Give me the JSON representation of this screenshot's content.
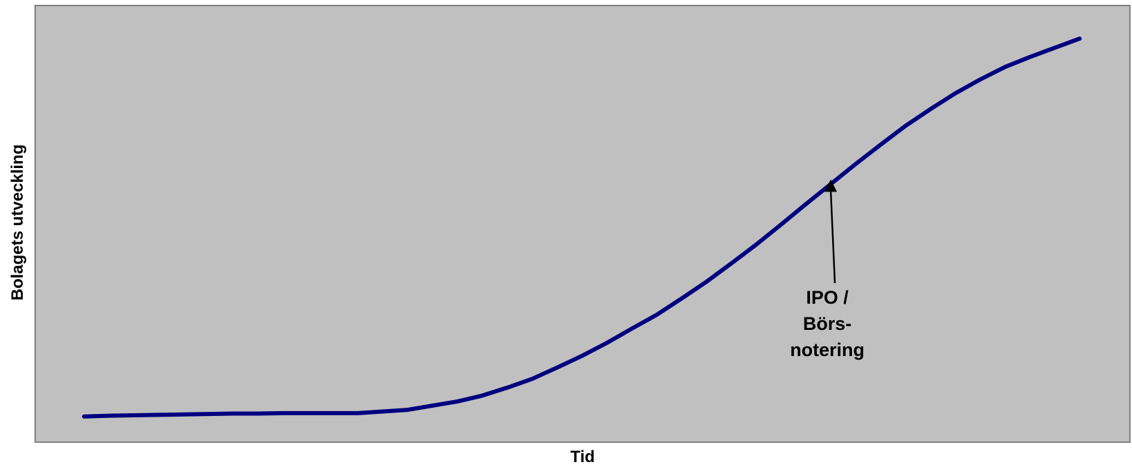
{
  "chart_data": {
    "type": "line",
    "title": "",
    "xlabel": "Tid",
    "ylabel": "Bolagets utveckling",
    "xlim": [
      0,
      40
    ],
    "ylim": [
      0,
      100
    ],
    "grid": false,
    "legend": "none",
    "series": [
      {
        "x": [
          0,
          1,
          2,
          3,
          4,
          5,
          6,
          7,
          8,
          9,
          10,
          11,
          12,
          13,
          14,
          15,
          16,
          17,
          18,
          19,
          20,
          21,
          22,
          23,
          24,
          25,
          26,
          27,
          28,
          29,
          30,
          31,
          32,
          33,
          34,
          35,
          36,
          37,
          38,
          39,
          40
        ],
        "y": [
          3.0,
          3.2,
          3.3,
          3.4,
          3.5,
          3.6,
          3.7,
          3.7,
          3.8,
          3.8,
          3.8,
          3.8,
          4.2,
          4.6,
          5.6,
          6.6,
          8.0,
          9.9,
          12.0,
          14.7,
          17.5,
          20.6,
          24.0,
          27.3,
          31.2,
          35.2,
          39.6,
          44.1,
          48.9,
          53.8,
          58.6,
          63.4,
          68.0,
          72.5,
          76.5,
          80.3,
          83.6,
          86.6,
          89.0,
          91.2,
          93.4
        ],
        "color": "#000080"
      }
    ],
    "annotations": [
      {
        "lines": [
          "IPO /",
          "Börs-",
          "notering"
        ],
        "arrow_to_x": 30.0,
        "arrow_to_y": 59.4
      }
    ]
  }
}
